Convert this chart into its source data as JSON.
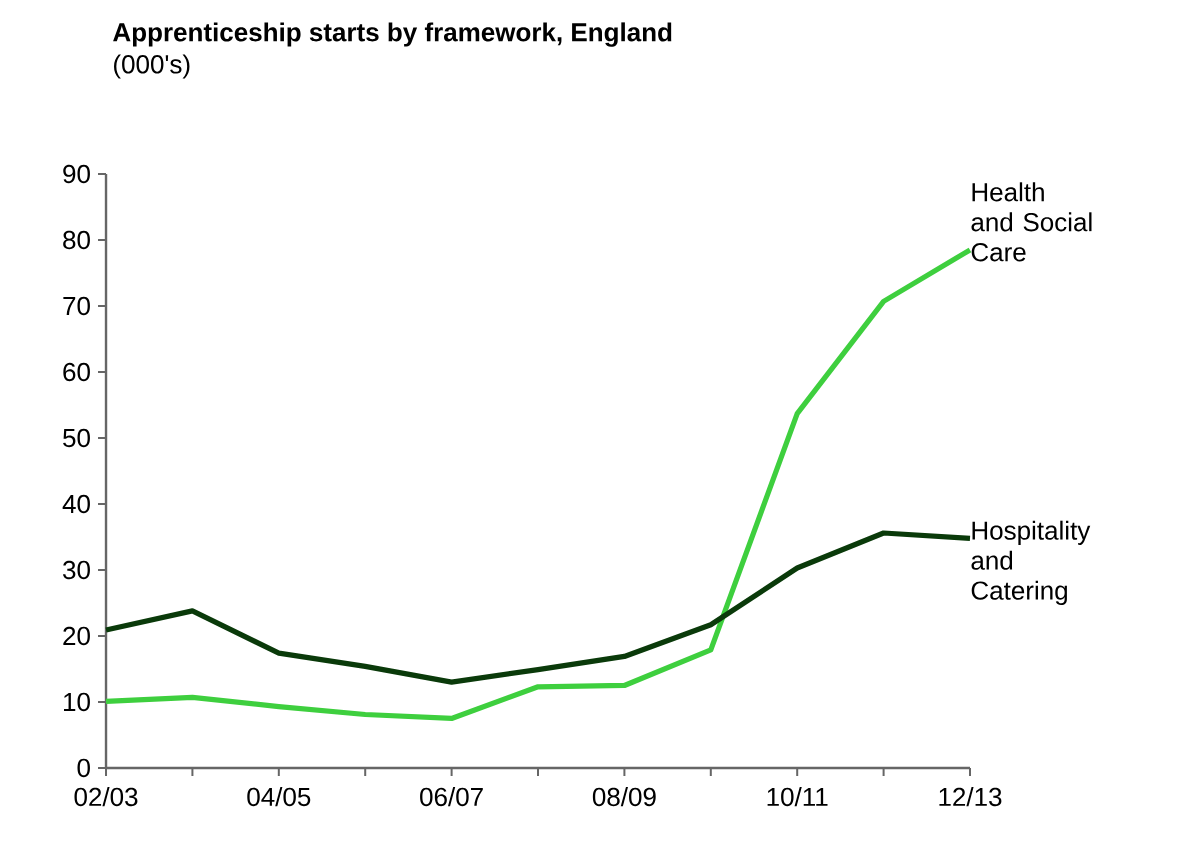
{
  "chart_data": {
    "type": "line",
    "title": "Apprenticeship starts by framework, England",
    "subtitle": "(000's)",
    "categories": [
      "02/03",
      null,
      "04/05",
      null,
      "06/07",
      null,
      "08/09",
      null,
      "10/11",
      null,
      "12/13"
    ],
    "series": [
      {
        "name": "Health and Social Care",
        "color": "#3ecf3e",
        "values": [
          10.1,
          10.7,
          9.3,
          8.1,
          7.5,
          12.3,
          12.5,
          17.9,
          53.7,
          70.7,
          78.5
        ]
      },
      {
        "name": "Hospitality and Catering",
        "color": "#0a3a0a",
        "values": [
          20.9,
          23.8,
          17.4,
          15.4,
          13.0,
          14.9,
          16.9,
          21.7,
          30.3,
          35.6,
          34.8
        ]
      }
    ],
    "ylim": [
      0,
      90
    ],
    "yticks": [
      0,
      10,
      20,
      30,
      40,
      50,
      60,
      70,
      80,
      90
    ],
    "grid": false,
    "legend": false,
    "marker": "none",
    "line_style": "solid"
  }
}
